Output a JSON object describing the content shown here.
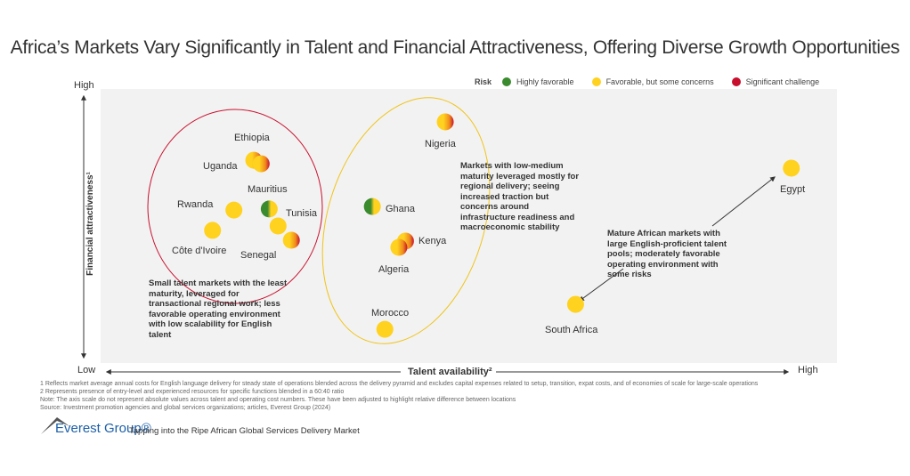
{
  "chart_data": {
    "type": "scatter",
    "title": "Africa’s Markets Vary Significantly in Talent and Financial Attractiveness, Offering Diverse Growth Opportunities",
    "xlabel": "Talent availability²",
    "ylabel": "Financial attractiveness¹",
    "x_low": "Low",
    "x_high": "High",
    "y_low": "Low",
    "y_high": "High",
    "xlim": [
      0,
      100
    ],
    "ylim": [
      0,
      100
    ],
    "grid": false,
    "legend": {
      "title": "Risk",
      "placement": "top-right",
      "items": [
        {
          "label": "Highly favorable",
          "color": "#3a8a2e"
        },
        {
          "label": "Favorable, but some concerns",
          "color": "#ffd21f"
        },
        {
          "label": "Significant challenge",
          "color": "#c8102e"
        }
      ]
    },
    "points": [
      {
        "name": "Ethiopia",
        "x": 20.8,
        "y": 74.0,
        "risk": "favorable-challenge"
      },
      {
        "name": "Uganda",
        "x": 21.8,
        "y": 72.7,
        "risk": "favorable-challenge"
      },
      {
        "name": "Rwanda",
        "x": 18.1,
        "y": 55.8,
        "risk": "favorable"
      },
      {
        "name": "Côte d'Ivoire",
        "x": 15.2,
        "y": 48.4,
        "risk": "favorable"
      },
      {
        "name": "Mauritius",
        "x": 22.9,
        "y": 56.2,
        "risk": "highly-favorable"
      },
      {
        "name": "Tunisia",
        "x": 24.1,
        "y": 50.0,
        "risk": "favorable"
      },
      {
        "name": "Senegal",
        "x": 25.9,
        "y": 44.8,
        "risk": "favorable-challenge"
      },
      {
        "name": "Nigeria",
        "x": 46.8,
        "y": 88.0,
        "risk": "favorable-challenge"
      },
      {
        "name": "Ghana",
        "x": 36.9,
        "y": 57.1,
        "risk": "highly-favorable"
      },
      {
        "name": "Kenya",
        "x": 41.4,
        "y": 44.5,
        "risk": "favorable-challenge"
      },
      {
        "name": "Algeria",
        "x": 40.5,
        "y": 42.2,
        "risk": "favorable-challenge"
      },
      {
        "name": "Morocco",
        "x": 38.6,
        "y": 12.3,
        "risk": "favorable"
      },
      {
        "name": "South Africa",
        "x": 64.5,
        "y": 21.4,
        "risk": "favorable"
      },
      {
        "name": "Egypt",
        "x": 93.8,
        "y": 71.1,
        "risk": "favorable"
      }
    ],
    "annotations": [
      "Small talent markets with the least maturity, leveraged for transactional regional work; less favorable operating environment with low scalability for English talent",
      "Markets with low-medium maturity leveraged mostly for regional delivery; seeing increased traction but concerns around infrastructure readiness and macroeconomic stability",
      "Mature African markets with large English-proficient talent pools; moderately favorable operating environment with some risks"
    ]
  },
  "footnotes": [
    "1 Reflects market average annual costs for English language delivery for steady state of operations blended across the delivery pyramid and excludes capital expenses related to setup, transition, expat costs, and of economies of scale for large-scale operations",
    "2 Represents presence of entry-level and experienced resources for specific functions blended in a 60:40 ratio",
    "Note: The axis scale do not represent absolute values across talent and operating cost numbers. These have been adjusted to highlight relative difference between locations",
    "Source: Investment promotion agencies and global services organizations; articles, Everest Group (2024)"
  ],
  "brand": {
    "logo": "Everest Group®",
    "tagline": "Tapping into the Ripe African Global Services Delivery Market"
  }
}
